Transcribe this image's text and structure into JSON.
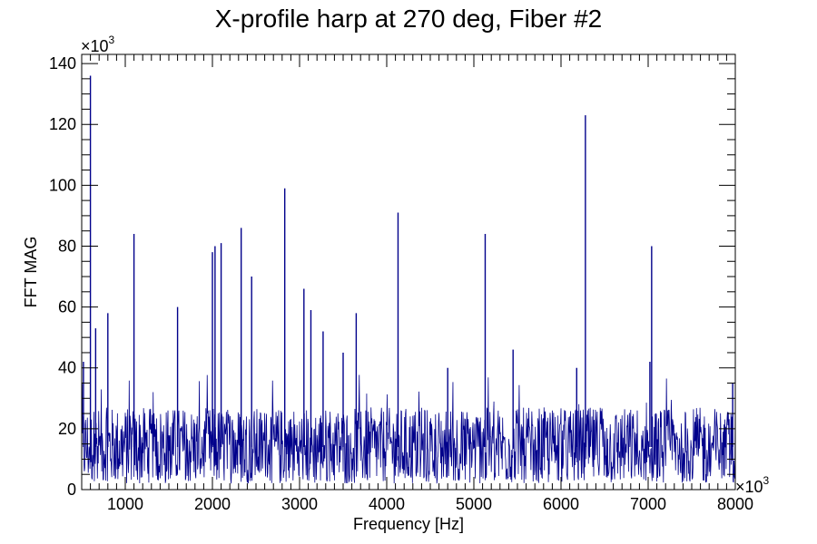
{
  "chart_data": {
    "type": "line",
    "title": "X-profile harp at 270 deg, Fiber #2",
    "xlabel": "Frequency [Hz]",
    "ylabel": "FFT MAG",
    "xlim": [
      500000,
      8000000
    ],
    "ylim": [
      0,
      143000
    ],
    "x_multiplier_label": "×10",
    "x_multiplier_exp": "3",
    "y_multiplier_label": "×10",
    "y_multiplier_exp": "3",
    "x_tick_values": [
      1000000,
      2000000,
      3000000,
      4000000,
      5000000,
      6000000,
      7000000,
      8000000
    ],
    "x_tick_labels": [
      "1000",
      "2000",
      "3000",
      "4000",
      "5000",
      "6000",
      "7000",
      "8000"
    ],
    "y_tick_values": [
      0,
      20000,
      40000,
      60000,
      80000,
      100000,
      120000,
      140000
    ],
    "y_tick_labels": [
      "0",
      "20",
      "40",
      "60",
      "80",
      "100",
      "120",
      "140"
    ],
    "line_color": "#00008b",
    "grid": false,
    "noise_floor": {
      "x_start": 500000,
      "x_end": 8000000,
      "low": 2000,
      "typical": 14000,
      "high": 28000
    },
    "peaks": [
      {
        "x": 520000,
        "y": 42000
      },
      {
        "x": 600000,
        "y": 136000
      },
      {
        "x": 660000,
        "y": 53000
      },
      {
        "x": 800000,
        "y": 58000
      },
      {
        "x": 1100000,
        "y": 84000
      },
      {
        "x": 1600000,
        "y": 60000
      },
      {
        "x": 2000000,
        "y": 78000
      },
      {
        "x": 2030000,
        "y": 80000
      },
      {
        "x": 2100000,
        "y": 81000
      },
      {
        "x": 2330000,
        "y": 86000
      },
      {
        "x": 2450000,
        "y": 70000
      },
      {
        "x": 2830000,
        "y": 99000
      },
      {
        "x": 3050000,
        "y": 66000
      },
      {
        "x": 3130000,
        "y": 59000
      },
      {
        "x": 3270000,
        "y": 52000
      },
      {
        "x": 3500000,
        "y": 45000
      },
      {
        "x": 3650000,
        "y": 58000
      },
      {
        "x": 4130000,
        "y": 91000
      },
      {
        "x": 4700000,
        "y": 40000
      },
      {
        "x": 5130000,
        "y": 84000
      },
      {
        "x": 5450000,
        "y": 46000
      },
      {
        "x": 6180000,
        "y": 40000
      },
      {
        "x": 6280000,
        "y": 123000
      },
      {
        "x": 7020000,
        "y": 42000
      },
      {
        "x": 7040000,
        "y": 80000
      },
      {
        "x": 7970000,
        "y": 35000
      }
    ]
  }
}
